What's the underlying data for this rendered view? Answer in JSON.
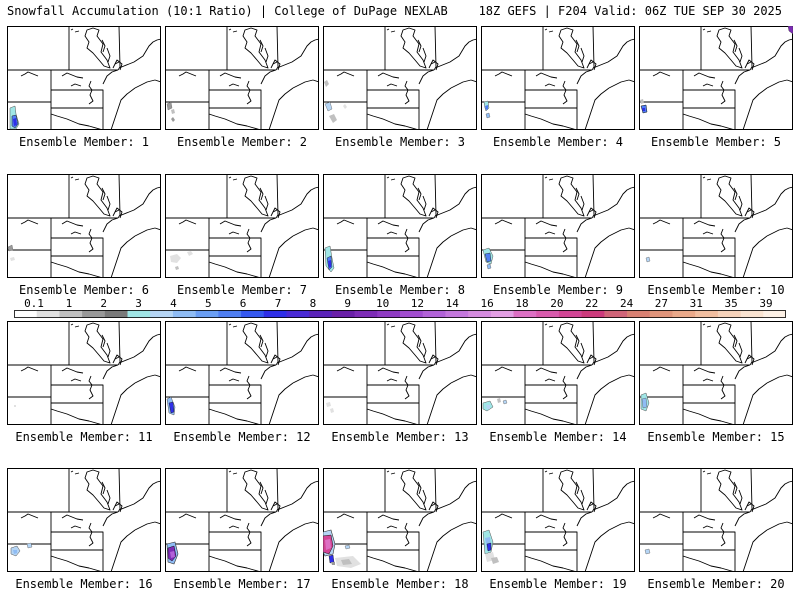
{
  "header": {
    "left": "Snowfall Accumulation (10:1 Ratio) | College of DuPage NEXLAB",
    "right": "18Z GEFS | F204 Valid: 06Z TUE SEP 30 2025"
  },
  "panels": [
    {
      "label": "Ensemble Member: 1"
    },
    {
      "label": "Ensemble Member: 2"
    },
    {
      "label": "Ensemble Member: 3"
    },
    {
      "label": "Ensemble Member: 4"
    },
    {
      "label": "Ensemble Member: 5"
    },
    {
      "label": "Ensemble Member: 6"
    },
    {
      "label": "Ensemble Member: 7"
    },
    {
      "label": "Ensemble Member: 8"
    },
    {
      "label": "Ensemble Member: 9"
    },
    {
      "label": "Ensemble Member: 10"
    },
    {
      "label": "Ensemble Member: 11"
    },
    {
      "label": "Ensemble Member: 12"
    },
    {
      "label": "Ensemble Member: 13"
    },
    {
      "label": "Ensemble Member: 14"
    },
    {
      "label": "Ensemble Member: 15"
    },
    {
      "label": "Ensemble Member: 16"
    },
    {
      "label": "Ensemble Member: 17"
    },
    {
      "label": "Ensemble Member: 18"
    },
    {
      "label": "Ensemble Member: 19"
    },
    {
      "label": "Ensemble Member: 20"
    }
  ],
  "colorbar": {
    "tick_labels": [
      "0.1",
      "1",
      "2",
      "3",
      "4",
      "5",
      "6",
      "7",
      "8",
      "9",
      "10",
      "12",
      "14",
      "16",
      "18",
      "20",
      "22",
      "24",
      "27",
      "31",
      "35",
      "39"
    ],
    "colors": [
      "#ffffff",
      "#e1e1e1",
      "#c0c0c0",
      "#999999",
      "#7a7a7a",
      "#a0e6e6",
      "#b5d5f5",
      "#8fbcf4",
      "#6a9ef3",
      "#4f7ef2",
      "#3558f0",
      "#2f2fe8",
      "#4a2ad6",
      "#5a22b8",
      "#6a1fa8",
      "#7d2bb6",
      "#8f3ac3",
      "#a24dd0",
      "#b262d8",
      "#c477dd",
      "#d58bdf",
      "#e39fe4",
      "#dd70c4",
      "#d85aac",
      "#d24595",
      "#cc3a7c",
      "#d06478",
      "#d88072",
      "#e1957b",
      "#eaa98a",
      "#f1bea0",
      "#f6d2ba",
      "#fae4d2",
      "#fdf1e6"
    ]
  }
}
